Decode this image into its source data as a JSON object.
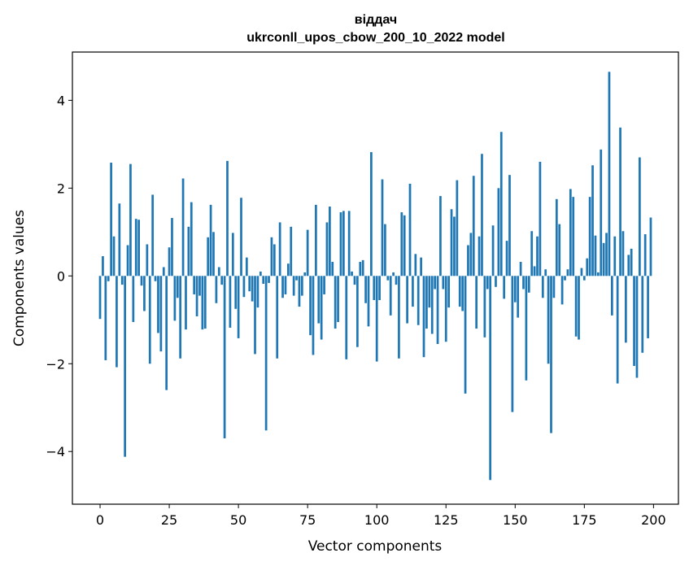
{
  "chart_data": {
    "type": "bar",
    "title_line1": "віддач",
    "title_line2": "ukrconll_upos_cbow_200_10_2022 model",
    "xlabel": "Vector components",
    "ylabel": "Components values",
    "xlim": [
      -10,
      209
    ],
    "ylim": [
      -5.2,
      5.1
    ],
    "xticks": [
      0,
      25,
      50,
      75,
      100,
      125,
      150,
      175,
      200
    ],
    "yticks": [
      -4,
      -2,
      0,
      2,
      4
    ],
    "xtick_labels": [
      "0",
      "25",
      "50",
      "75",
      "100",
      "125",
      "150",
      "175",
      "200"
    ],
    "ytick_labels": [
      "−4",
      "−2",
      "0",
      "2",
      "4"
    ],
    "bar_color": "#1f77b4",
    "values": [
      -0.98,
      0.45,
      -1.92,
      -0.12,
      2.58,
      0.9,
      -2.08,
      1.65,
      -0.2,
      -4.12,
      0.7,
      2.55,
      -1.05,
      1.3,
      1.28,
      -0.22,
      -0.8,
      0.72,
      -2.0,
      1.85,
      -0.12,
      -1.3,
      -1.72,
      0.2,
      -2.6,
      0.65,
      1.32,
      -1.02,
      -0.5,
      -1.88,
      2.22,
      -1.22,
      1.12,
      1.68,
      -0.42,
      -0.92,
      -0.45,
      -1.22,
      -1.2,
      0.88,
      1.62,
      1.0,
      -0.62,
      0.2,
      -0.2,
      -3.7,
      2.62,
      -1.18,
      0.98,
      -0.75,
      -1.42,
      1.78,
      -0.48,
      0.42,
      -0.35,
      -0.58,
      -1.78,
      -0.72,
      0.1,
      -0.18,
      -3.52,
      -0.16,
      0.88,
      0.72,
      -1.88,
      1.22,
      -0.5,
      -0.42,
      0.28,
      1.12,
      -0.45,
      -0.1,
      -0.7,
      -0.45,
      0.08,
      1.05,
      -1.35,
      -1.8,
      1.62,
      -1.08,
      -1.45,
      -0.42,
      1.22,
      1.58,
      0.32,
      -1.2,
      -1.05,
      1.45,
      1.48,
      -1.9,
      1.48,
      0.1,
      -0.2,
      -1.62,
      0.32,
      0.36,
      -0.62,
      -1.15,
      2.82,
      -0.55,
      -1.95,
      -0.55,
      2.2,
      1.18,
      -0.1,
      -0.9,
      0.08,
      -0.2,
      -1.88,
      1.45,
      1.38,
      -1.08,
      2.1,
      -0.7,
      0.5,
      -1.12,
      0.42,
      -1.85,
      -1.2,
      -0.72,
      -1.32,
      -0.3,
      -1.55,
      1.82,
      -0.3,
      -1.5,
      -0.72,
      1.52,
      1.35,
      2.18,
      -0.7,
      -0.8,
      -2.68,
      0.7,
      0.98,
      2.28,
      -1.2,
      0.9,
      2.78,
      -1.4,
      -0.3,
      -4.65,
      1.15,
      -0.25,
      2.0,
      3.28,
      -0.52,
      0.8,
      2.3,
      -3.1,
      -0.6,
      -0.95,
      0.32,
      -0.3,
      -2.38,
      -0.38,
      1.02,
      0.22,
      0.9,
      2.6,
      -0.5,
      0.15,
      -2.0,
      -3.58,
      -0.5,
      1.75,
      1.18,
      -0.65,
      -0.1,
      0.15,
      1.98,
      1.8,
      -1.38,
      -1.45,
      0.18,
      -0.1,
      0.4,
      1.8,
      2.52,
      0.92,
      0.08,
      2.88,
      0.75,
      0.98,
      4.65,
      -0.9,
      0.9,
      -2.45,
      3.38,
      1.02,
      -1.52,
      0.48,
      0.62,
      -2.05,
      -2.32,
      2.7,
      -1.75,
      0.95,
      -1.42,
      1.33
    ]
  }
}
